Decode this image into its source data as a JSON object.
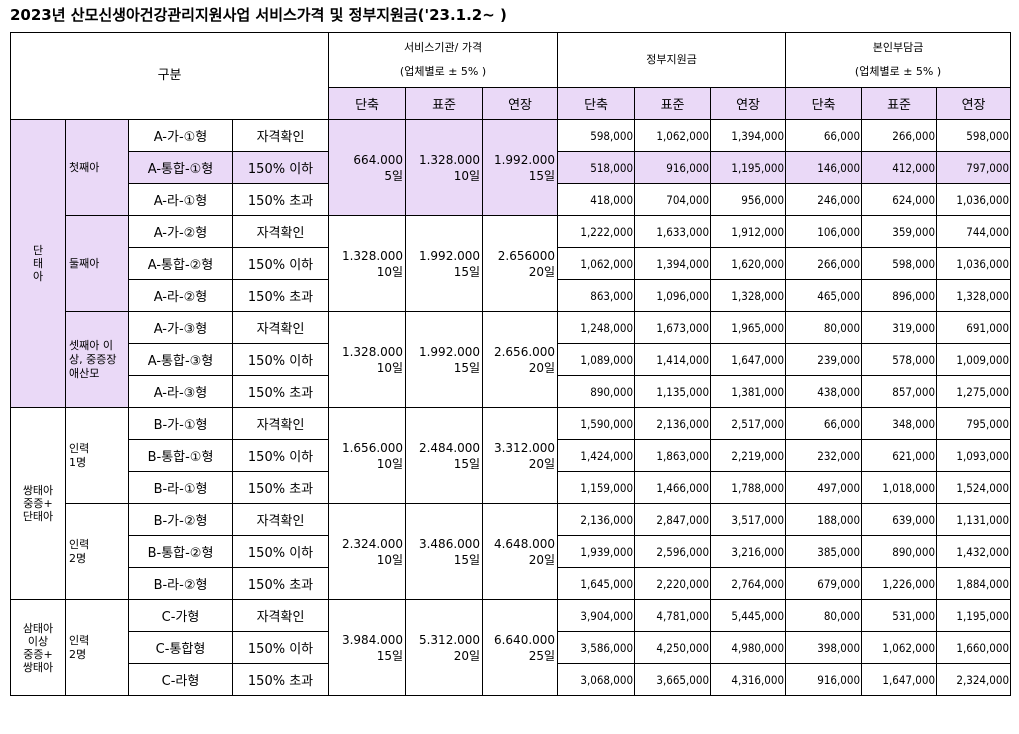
{
  "title": "2023년 산모신생아건강관리지원사업 서비스가격 및 정부지원금('23.1.2~ )",
  "header": {
    "category": "구분",
    "service_price_line1": "서비스기관/ 가격",
    "service_price_line2": "(업체별로 ± 5% )",
    "gov_support": "정부지원금",
    "self_pay_line1": "본인부담금",
    "self_pay_line2": "(업체별로 ± 5% )",
    "periods": [
      "단축",
      "표준",
      "연장"
    ]
  },
  "groups": [
    {
      "label": "단\n태\n아",
      "subgroups": [
        {
          "label": "첫째아",
          "price": [
            [
              "664.000",
              "5일"
            ],
            [
              "1.328.000",
              "10일"
            ],
            [
              "1.992.000",
              "15일"
            ]
          ],
          "rows": [
            {
              "code": "A-가-①형",
              "crit": "자격확인",
              "gov": [
                "598,000",
                "1,062,000",
                "1,394,000"
              ],
              "self": [
                "66,000",
                "266,000",
                "598,000"
              ]
            },
            {
              "code": "A-통합-①형",
              "crit": "150% 이하",
              "gov": [
                "518,000",
                "916,000",
                "1,195,000"
              ],
              "self": [
                "146,000",
                "412,000",
                "797,000"
              ]
            },
            {
              "code": "A-라-①형",
              "crit": "150% 초과",
              "gov": [
                "418,000",
                "704,000",
                "956,000"
              ],
              "self": [
                "246,000",
                "624,000",
                "1,036,000"
              ]
            }
          ]
        },
        {
          "label": "둘째아",
          "price": [
            [
              "1.328.000",
              "10일"
            ],
            [
              "1.992.000",
              "15일"
            ],
            [
              "2.656000",
              "20일"
            ]
          ],
          "rows": [
            {
              "code": "A-가-②형",
              "crit": "자격확인",
              "gov": [
                "1,222,000",
                "1,633,000",
                "1,912,000"
              ],
              "self": [
                "106,000",
                "359,000",
                "744,000"
              ]
            },
            {
              "code": "A-통합-②형",
              "crit": "150% 이하",
              "gov": [
                "1,062,000",
                "1,394,000",
                "1,620,000"
              ],
              "self": [
                "266,000",
                "598,000",
                "1,036,000"
              ]
            },
            {
              "code": "A-라-②형",
              "crit": "150% 초과",
              "gov": [
                "863,000",
                "1,096,000",
                "1,328,000"
              ],
              "self": [
                "465,000",
                "896,000",
                "1,328,000"
              ]
            }
          ]
        },
        {
          "label": "셋째아 이\n상, 중증장\n애산모",
          "price": [
            [
              "1.328.000",
              "10일"
            ],
            [
              "1.992.000",
              "15일"
            ],
            [
              "2.656.000",
              "20일"
            ]
          ],
          "rows": [
            {
              "code": "A-가-③형",
              "crit": "자격확인",
              "gov": [
                "1,248,000",
                "1,673,000",
                "1,965,000"
              ],
              "self": [
                "80,000",
                "319,000",
                "691,000"
              ]
            },
            {
              "code": "A-통합-③형",
              "crit": "150% 이하",
              "gov": [
                "1,089,000",
                "1,414,000",
                "1,647,000"
              ],
              "self": [
                "239,000",
                "578,000",
                "1,009,000"
              ]
            },
            {
              "code": "A-라-③형",
              "crit": "150% 초과",
              "gov": [
                "890,000",
                "1,135,000",
                "1,381,000"
              ],
              "self": [
                "438,000",
                "857,000",
                "1,275,000"
              ]
            }
          ]
        }
      ]
    },
    {
      "label": "쌍태아\n중증+\n단태아",
      "subgroups": [
        {
          "label": "인력\n1명",
          "price": [
            [
              "1.656.000",
              "10일"
            ],
            [
              "2.484.000",
              "15일"
            ],
            [
              "3.312.000",
              "20일"
            ]
          ],
          "rows": [
            {
              "code": "B-가-①형",
              "crit": "자격확인",
              "gov": [
                "1,590,000",
                "2,136,000",
                "2,517,000"
              ],
              "self": [
                "66,000",
                "348,000",
                "795,000"
              ]
            },
            {
              "code": "B-통합-①형",
              "crit": "150% 이하",
              "gov": [
                "1,424,000",
                "1,863,000",
                "2,219,000"
              ],
              "self": [
                "232,000",
                "621,000",
                "1,093,000"
              ]
            },
            {
              "code": "B-라-①형",
              "crit": "150% 초과",
              "gov": [
                "1,159,000",
                "1,466,000",
                "1,788,000"
              ],
              "self": [
                "497,000",
                "1,018,000",
                "1,524,000"
              ]
            }
          ]
        },
        {
          "label": "인력\n2명",
          "price": [
            [
              "2.324.000",
              "10일"
            ],
            [
              "3.486.000",
              "15일"
            ],
            [
              "4.648.000",
              "20일"
            ]
          ],
          "rows": [
            {
              "code": "B-가-②형",
              "crit": "자격확인",
              "gov": [
                "2,136,000",
                "2,847,000",
                "3,517,000"
              ],
              "self": [
                "188,000",
                "639,000",
                "1,131,000"
              ]
            },
            {
              "code": "B-통합-②형",
              "crit": "150% 이하",
              "gov": [
                "1,939,000",
                "2,596,000",
                "3,216,000"
              ],
              "self": [
                "385,000",
                "890,000",
                "1,432,000"
              ]
            },
            {
              "code": "B-라-②형",
              "crit": "150% 초과",
              "gov": [
                "1,645,000",
                "2,220,000",
                "2,764,000"
              ],
              "self": [
                "679,000",
                "1,226,000",
                "1,884,000"
              ]
            }
          ]
        }
      ]
    },
    {
      "label": "삼태아\n이상\n중증+\n쌍태아",
      "subgroups": [
        {
          "label": "인력\n2명",
          "price": [
            [
              "3.984.000",
              "15일"
            ],
            [
              "5.312.000",
              "20일"
            ],
            [
              "6.640.000",
              "25일"
            ]
          ],
          "rows": [
            {
              "code": "C-가형",
              "crit": "자격확인",
              "gov": [
                "3,904,000",
                "4,781,000",
                "5,445,000"
              ],
              "self": [
                "80,000",
                "531,000",
                "1,195,000"
              ]
            },
            {
              "code": "C-통합형",
              "crit": "150% 이하",
              "gov": [
                "3,586,000",
                "4,250,000",
                "4,980,000"
              ],
              "self": [
                "398,000",
                "1,062,000",
                "1,660,000"
              ]
            },
            {
              "code": "C-라형",
              "crit": "150% 초과",
              "gov": [
                "3,068,000",
                "3,665,000",
                "4,316,000"
              ],
              "self": [
                "916,000",
                "1,647,000",
                "2,324,000"
              ]
            }
          ]
        }
      ]
    }
  ]
}
